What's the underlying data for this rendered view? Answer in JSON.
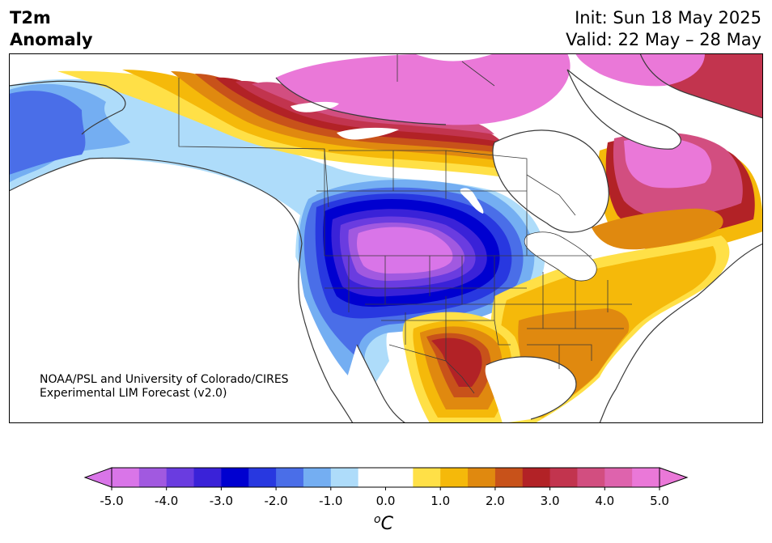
{
  "title": {
    "line1": "T2m",
    "line2": "Anomaly"
  },
  "header_right": {
    "init": "Init: Sun 18 May 2025",
    "valid": "Valid: 22 May – 28 May"
  },
  "credit": {
    "line1": "NOAA/PSL and University of Colorado/CIRES",
    "line2": "Experimental LIM Forecast (v2.0)"
  },
  "colorbar": {
    "unit_super": "o",
    "unit_main": "C",
    "ticks": [
      "-5.0",
      "-4.0",
      "-3.0",
      "-2.0",
      "-1.0",
      "0.0",
      "1.0",
      "2.0",
      "3.0",
      "4.0",
      "5.0"
    ],
    "levels": [
      -5.0,
      -4.5,
      -4.0,
      -3.5,
      -3.0,
      -2.5,
      -2.0,
      -1.5,
      -1.0,
      -0.5,
      0.5,
      1.0,
      1.5,
      2.0,
      2.5,
      3.0,
      3.5,
      4.0,
      4.5,
      5.0
    ],
    "colors": [
      "#d975e8",
      "#a159e0",
      "#6a3ce0",
      "#3a22d8",
      "#0000d0",
      "#2838e0",
      "#4a6ee8",
      "#74aef2",
      "#aedcfa",
      "#ffffff",
      "#ffe047",
      "#f5b90a",
      "#e0890f",
      "#c8521a",
      "#b22226",
      "#c2344e",
      "#d24e80",
      "#de63ad",
      "#ea78d8"
    ],
    "under_color": "#d975e8",
    "over_color": "#ea78d8"
  }
}
